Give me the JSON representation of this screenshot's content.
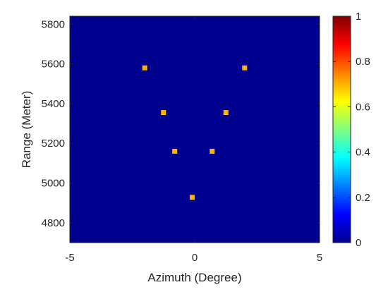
{
  "chart_data": {
    "type": "heatmap",
    "title": "",
    "xlabel": "Azimuth (Degree)",
    "ylabel": "Range (Meter)",
    "xlim": [
      -5,
      5
    ],
    "ylim": [
      4700,
      5840
    ],
    "xticks": [
      -5,
      0,
      5
    ],
    "yticks": [
      4800,
      5000,
      5200,
      5400,
      5600,
      5800
    ],
    "grid": false,
    "background_value": 0,
    "colormap": "jet",
    "colorbar": {
      "range": [
        0,
        1
      ],
      "ticks": [
        0,
        0.2,
        0.4,
        0.6,
        0.8,
        1
      ],
      "tick_labels": [
        "0",
        "0.2",
        "0.4",
        "0.6",
        "0.8",
        "1"
      ]
    },
    "points": [
      {
        "x": -2.0,
        "y": 5580,
        "value": 0.7
      },
      {
        "x": 2.0,
        "y": 5580,
        "value": 0.7
      },
      {
        "x": -1.25,
        "y": 5355,
        "value": 0.7
      },
      {
        "x": 1.25,
        "y": 5355,
        "value": 0.7
      },
      {
        "x": -0.8,
        "y": 5160,
        "value": 0.7
      },
      {
        "x": 0.7,
        "y": 5160,
        "value": 0.7
      },
      {
        "x": -0.1,
        "y": 4928,
        "value": 0.7
      }
    ]
  }
}
